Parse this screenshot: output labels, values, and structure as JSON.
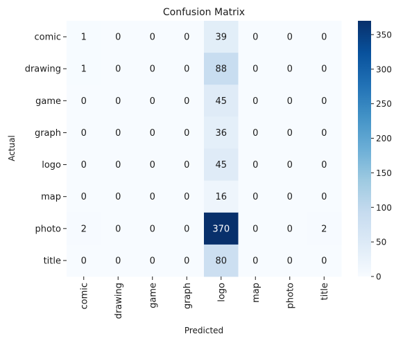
{
  "chart_data": {
    "type": "heatmap",
    "title": "Confusion Matrix",
    "xlabel": "Predicted",
    "ylabel": "Actual",
    "x_categories": [
      "comic",
      "drawing",
      "game",
      "graph",
      "logo",
      "map",
      "photo",
      "title"
    ],
    "y_categories": [
      "comic",
      "drawing",
      "game",
      "graph",
      "logo",
      "map",
      "photo",
      "title"
    ],
    "values": [
      [
        1,
        0,
        0,
        0,
        39,
        0,
        0,
        0
      ],
      [
        1,
        0,
        0,
        0,
        88,
        0,
        0,
        0
      ],
      [
        0,
        0,
        0,
        0,
        45,
        0,
        0,
        0
      ],
      [
        0,
        0,
        0,
        0,
        36,
        0,
        0,
        0
      ],
      [
        0,
        0,
        0,
        0,
        45,
        0,
        0,
        0
      ],
      [
        0,
        0,
        0,
        0,
        16,
        0,
        0,
        0
      ],
      [
        2,
        0,
        0,
        0,
        370,
        0,
        0,
        2
      ],
      [
        0,
        0,
        0,
        0,
        80,
        0,
        0,
        0
      ]
    ],
    "colormap": "Blues",
    "colorbar": {
      "range": [
        0,
        370
      ],
      "ticks": [
        0,
        50,
        100,
        150,
        200,
        250,
        300,
        350
      ]
    },
    "annotations": true,
    "grid": false
  }
}
